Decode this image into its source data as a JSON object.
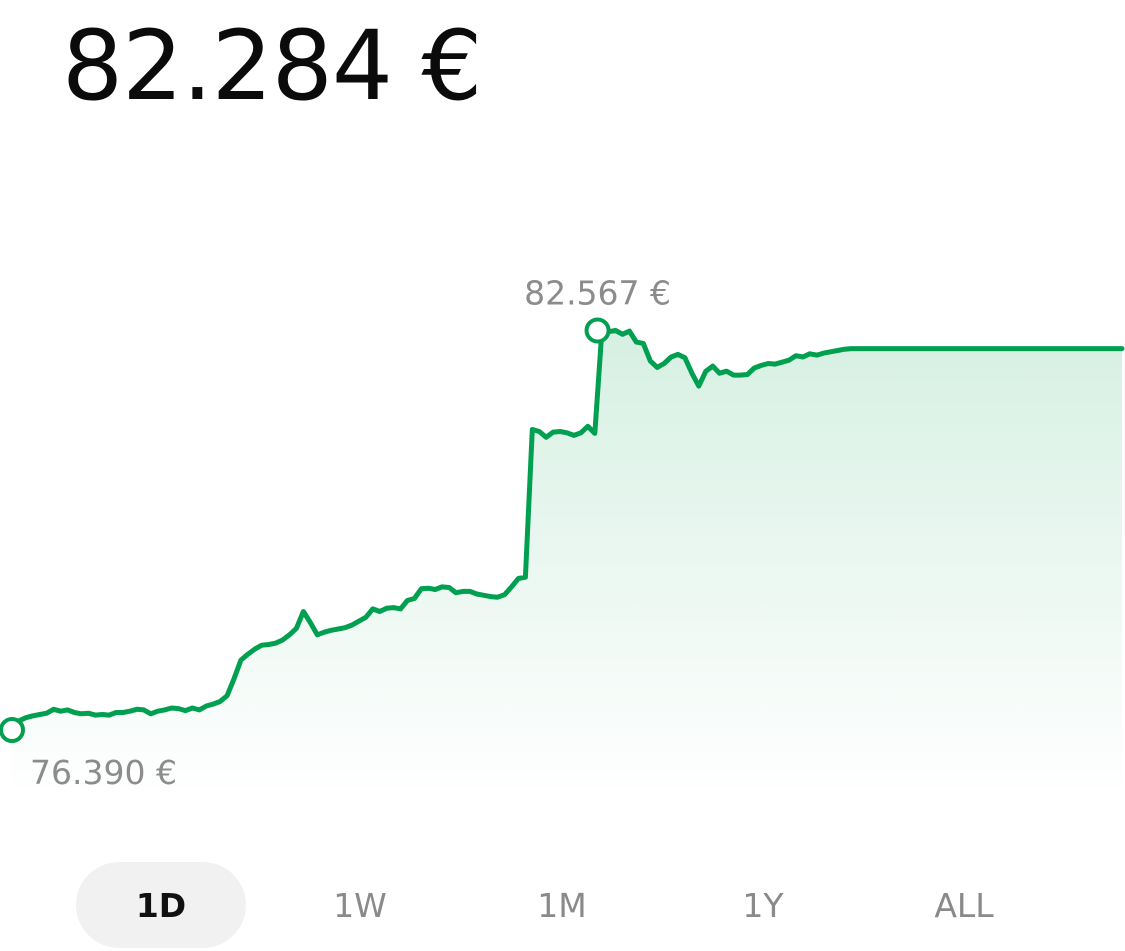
{
  "header": {
    "price": "82.284 €"
  },
  "chart_data": {
    "type": "area",
    "line_color": "#00a050",
    "fill_color": "#00a050",
    "high_label": "82.567 €",
    "low_label": "76.390 €",
    "high_value": 82.567,
    "low_value": 76.39,
    "x": [
      0,
      7,
      14,
      21,
      28,
      35,
      42,
      49,
      56,
      63,
      70,
      77,
      84,
      91,
      98,
      105,
      112,
      119,
      126,
      133,
      140,
      147,
      154,
      161,
      168,
      175,
      182,
      189,
      196,
      203,
      210,
      217,
      224,
      231,
      238,
      245,
      252,
      259,
      266,
      273,
      280,
      287,
      294,
      301,
      308,
      315,
      322,
      329,
      336,
      343,
      350,
      357,
      364,
      371,
      378,
      385,
      392,
      399,
      406,
      413,
      420,
      427,
      434,
      441,
      448,
      455,
      462,
      469,
      476,
      483,
      490,
      497,
      504,
      511,
      518,
      525,
      532,
      539,
      546,
      553,
      560,
      567,
      574,
      581,
      588,
      595,
      602,
      609,
      616,
      623,
      630,
      637,
      644,
      651,
      658,
      665,
      672,
      679,
      686,
      693,
      700,
      707,
      714,
      721,
      728,
      735,
      742,
      749,
      756,
      763,
      770,
      777,
      784,
      791,
      798,
      805,
      812,
      819,
      826,
      833,
      840,
      847,
      854,
      861,
      868,
      875,
      882,
      889,
      896,
      903,
      910,
      917,
      924,
      931,
      938,
      945,
      952,
      959,
      966,
      973,
      980,
      987,
      994,
      1001,
      1008,
      1015,
      1022,
      1029,
      1036,
      1043,
      1050,
      1057,
      1064,
      1071,
      1078,
      1085,
      1092,
      1099,
      1106,
      1113,
      1120
    ],
    "values": [
      76.39,
      76.53,
      76.58,
      76.61,
      76.63,
      76.65,
      76.71,
      76.68,
      76.7,
      76.66,
      76.64,
      76.65,
      76.62,
      76.63,
      76.62,
      76.66,
      76.66,
      76.68,
      76.71,
      76.7,
      76.64,
      76.68,
      76.7,
      76.73,
      76.72,
      76.69,
      76.73,
      76.7,
      76.76,
      76.79,
      76.83,
      76.92,
      77.18,
      77.47,
      77.56,
      77.64,
      77.7,
      77.71,
      77.73,
      77.78,
      77.86,
      77.96,
      78.22,
      78.05,
      77.86,
      77.9,
      77.93,
      77.95,
      77.97,
      78.01,
      78.07,
      78.13,
      78.26,
      78.22,
      78.27,
      78.28,
      78.26,
      78.39,
      78.42,
      78.57,
      78.58,
      78.56,
      78.6,
      78.59,
      78.51,
      78.53,
      78.53,
      78.49,
      78.47,
      78.45,
      78.44,
      78.48,
      78.6,
      78.73,
      78.75,
      81.03,
      81.0,
      80.91,
      80.99,
      81.0,
      80.98,
      80.94,
      80.98,
      81.08,
      80.97,
      82.51,
      82.54,
      82.56,
      82.5,
      82.55,
      82.38,
      82.36,
      82.09,
      81.99,
      82.05,
      82.15,
      82.19,
      82.14,
      81.9,
      81.7,
      81.93,
      82.01,
      81.9,
      81.93,
      81.87,
      81.87,
      81.88,
      81.98,
      82.02,
      82.05,
      82.04,
      82.07,
      82.1,
      82.17,
      82.15,
      82.2,
      82.18,
      82.21,
      82.23,
      82.25,
      82.27,
      82.28,
      82.28,
      82.28,
      82.28,
      82.28,
      82.28,
      82.28,
      82.28,
      82.28,
      82.28,
      82.28,
      82.28,
      82.28,
      82.28,
      82.28,
      82.28,
      82.28,
      82.28,
      82.28,
      82.28,
      82.28,
      82.28,
      82.28,
      82.28,
      82.28,
      82.28,
      82.28,
      82.28,
      82.28,
      82.28,
      82.28,
      82.28,
      82.28,
      82.28,
      82.28,
      82.28,
      82.28,
      82.28,
      82.28,
      82.28
    ]
  },
  "ranges": [
    {
      "label": "1D",
      "active": true
    },
    {
      "label": "1W",
      "active": false
    },
    {
      "label": "1M",
      "active": false
    },
    {
      "label": "1Y",
      "active": false
    },
    {
      "label": "ALL",
      "active": false
    }
  ]
}
